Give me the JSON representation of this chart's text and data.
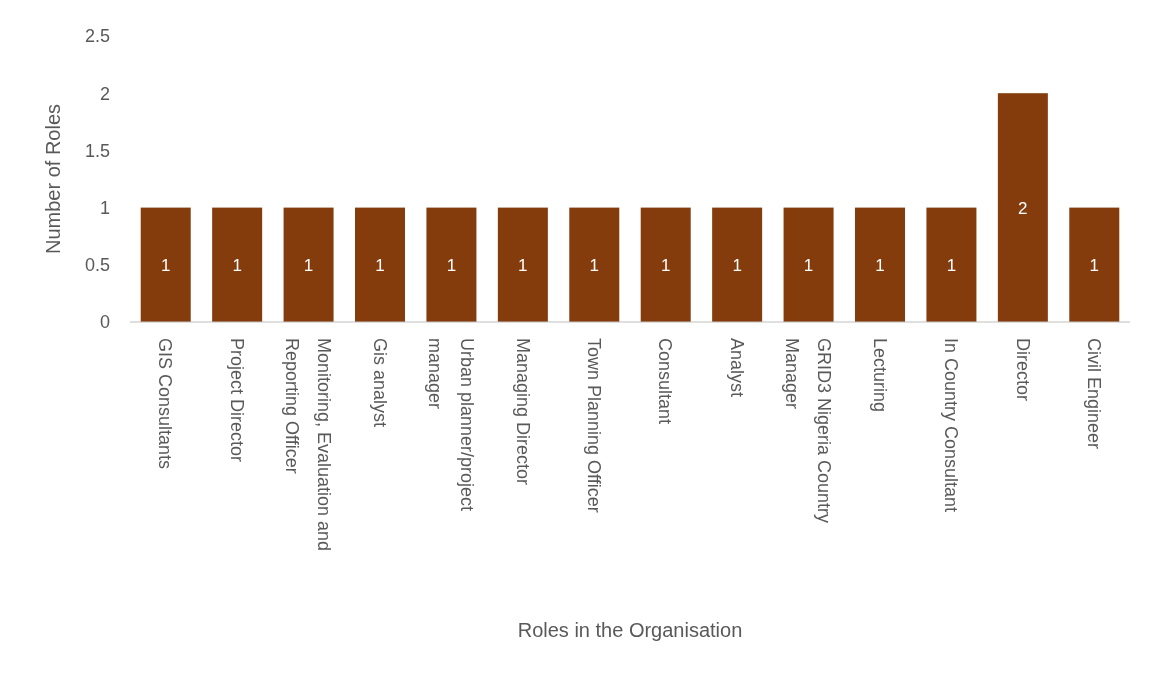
{
  "chart_data": {
    "type": "bar",
    "xlabel": "Roles in the Organisation",
    "ylabel": "Number of Roles",
    "categories": [
      "GIS Consultants",
      "Project Director",
      "Monitoring, Evaluation and Reporting Officer",
      "Gis analyst",
      "Urban planner/project manager",
      "Managing Director",
      "Town Planning Officer",
      "Consultant",
      "Analyst",
      "GRID3 Nigeria Country Manager",
      "Lecturing",
      "In Country Consultant",
      "Director",
      "Civil Engineer"
    ],
    "values": [
      1,
      1,
      1,
      1,
      1,
      1,
      1,
      1,
      1,
      1,
      1,
      1,
      2,
      1
    ],
    "color": "#843c0c",
    "ylim": [
      0,
      2.5
    ],
    "yticks": [
      0,
      0.5,
      1,
      1.5,
      2,
      2.5
    ],
    "data_labels": true,
    "grid": false
  }
}
